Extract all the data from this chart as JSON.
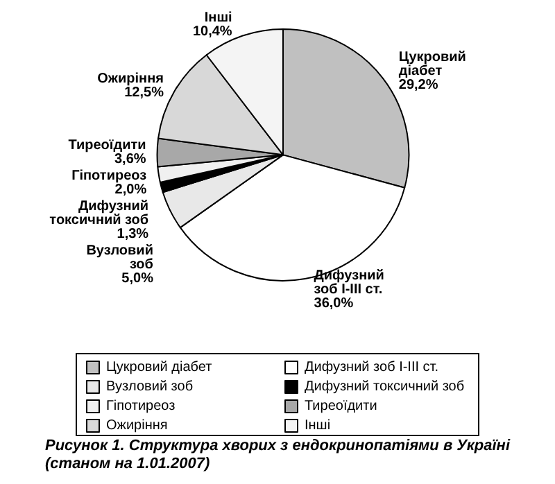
{
  "chart_data": {
    "type": "pie",
    "title": "Рисунок 1. Структура хворих з ендокринопатіями в Україні\n(станом на 1.01.2007)",
    "categories": [
      "Цукровий діабет",
      "Дифузний зоб I-III ст.",
      "Вузловий зоб",
      "Дифузний токсичний зоб",
      "Гіпотиреоз",
      "Тиреоїдити",
      "Ожиріння",
      "Інші"
    ],
    "values": [
      29.2,
      36.0,
      5.0,
      1.3,
      2.0,
      3.6,
      12.5,
      10.4
    ],
    "value_labels": [
      "29,2%",
      "36,0%",
      "5,0%",
      "1,3%",
      "2,0%",
      "3,6%",
      "12,5%",
      "10,4%"
    ],
    "colors": [
      "#c0c0c0",
      "#ffffff",
      "#e8e8e8",
      "#000000",
      "#f0f0f0",
      "#a8a8a8",
      "#d8d8d8",
      "#f4f4f4"
    ],
    "legend": "bottom"
  }
}
